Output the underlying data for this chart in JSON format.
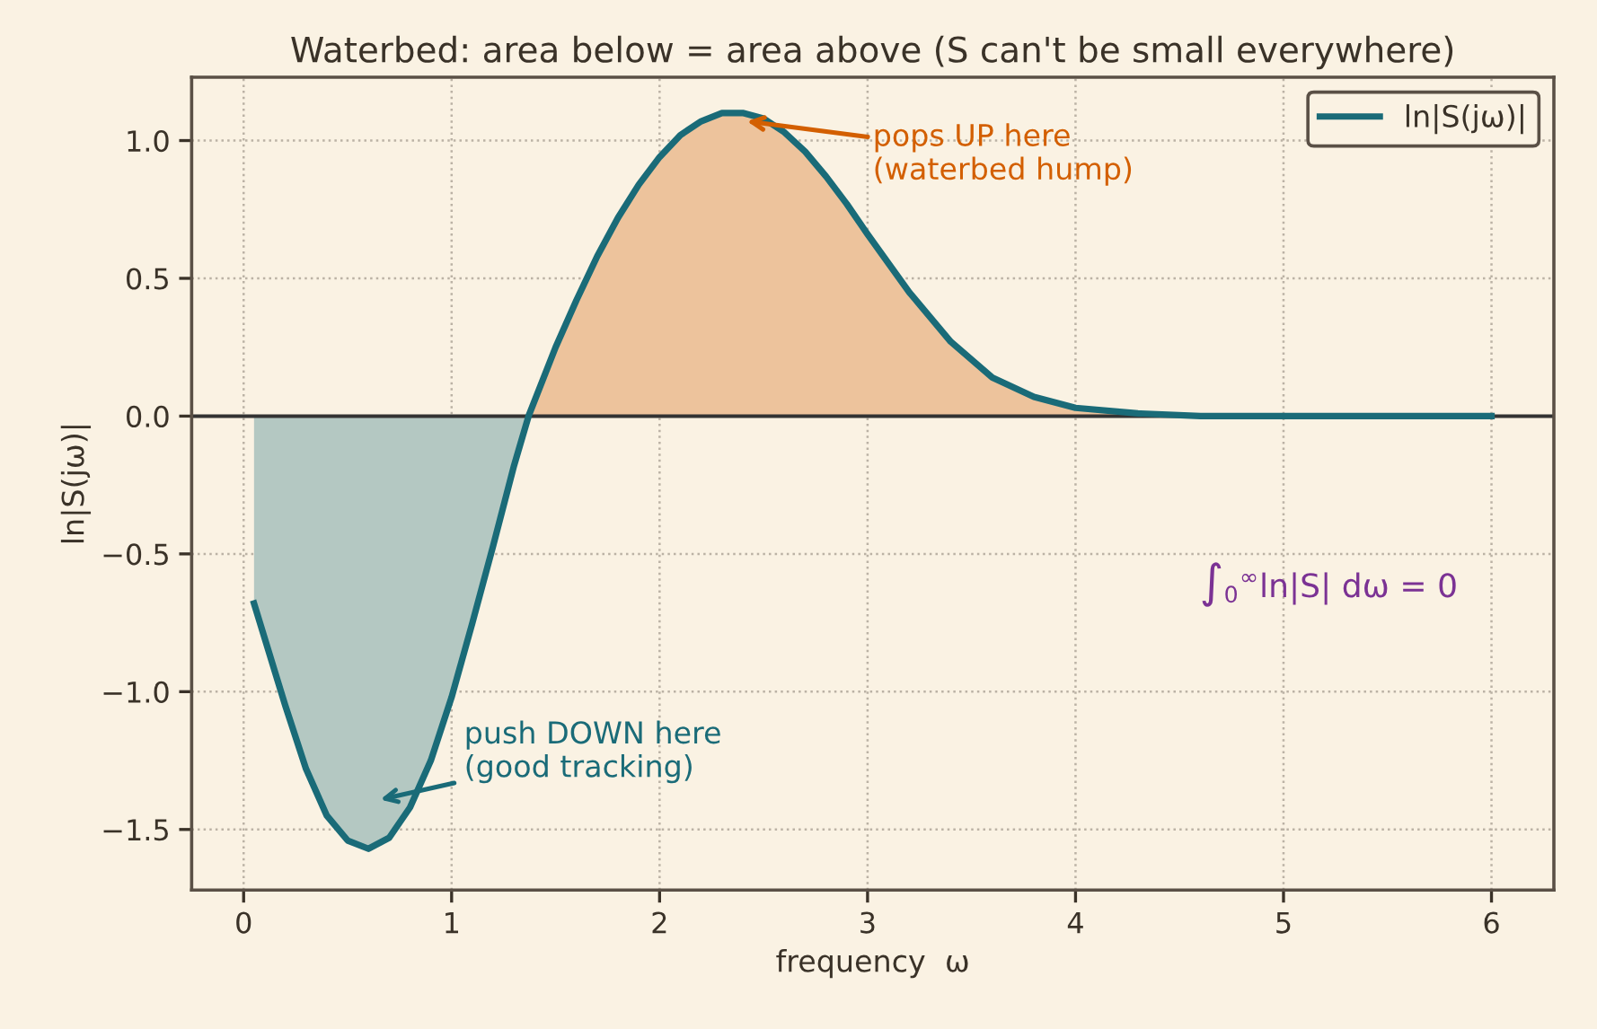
{
  "chart_data": {
    "type": "line",
    "title": "Waterbed: area below = area above (S can't be small everywhere)",
    "xlabel": "frequency  ω",
    "ylabel": "ln|S(jω)|",
    "series": [
      {
        "type": "area",
        "color": "#b4c8c2",
        "x": [
          0.05,
          0.2,
          0.3,
          0.4,
          0.5,
          0.6,
          0.7,
          0.8,
          0.9,
          1.0,
          1.1,
          1.2,
          1.3,
          1.37
        ],
        "values": [
          -0.68,
          -1.05,
          -1.28,
          -1.45,
          -1.54,
          -1.57,
          -1.53,
          -1.42,
          -1.25,
          -1.02,
          -0.75,
          -0.47,
          -0.18,
          0
        ]
      },
      {
        "type": "area",
        "color": "#edc39c",
        "x": [
          1.37,
          1.5,
          1.6,
          1.7,
          1.8,
          1.9,
          2.0,
          2.1,
          2.2,
          2.3,
          2.4,
          2.5,
          2.6,
          2.7,
          2.8,
          2.9,
          3.0,
          3.2,
          3.4,
          3.6,
          3.8,
          4.0,
          4.3,
          4.6,
          5.0,
          6.0
        ],
        "values": [
          0,
          0.25,
          0.42,
          0.58,
          0.72,
          0.84,
          0.94,
          1.02,
          1.07,
          1.1,
          1.1,
          1.08,
          1.03,
          0.96,
          0.87,
          0.77,
          0.66,
          0.45,
          0.27,
          0.14,
          0.07,
          0.03,
          0.01,
          0,
          0,
          0
        ]
      },
      {
        "name": "ln|S(jω)|",
        "color": "#1a6b78",
        "x": [
          0.05,
          0.2,
          0.3,
          0.4,
          0.5,
          0.6,
          0.7,
          0.8,
          0.9,
          1.0,
          1.1,
          1.2,
          1.3,
          1.37,
          1.5,
          1.6,
          1.7,
          1.8,
          1.9,
          2.0,
          2.1,
          2.2,
          2.3,
          2.4,
          2.5,
          2.6,
          2.7,
          2.8,
          2.9,
          3.0,
          3.2,
          3.4,
          3.6,
          3.8,
          4.0,
          4.3,
          4.6,
          5.0,
          6.0
        ],
        "values": [
          -0.68,
          -1.05,
          -1.28,
          -1.45,
          -1.54,
          -1.57,
          -1.53,
          -1.42,
          -1.25,
          -1.02,
          -0.75,
          -0.47,
          -0.18,
          0,
          0.25,
          0.42,
          0.58,
          0.72,
          0.84,
          0.94,
          1.02,
          1.07,
          1.1,
          1.1,
          1.08,
          1.03,
          0.96,
          0.87,
          0.77,
          0.66,
          0.45,
          0.27,
          0.14,
          0.07,
          0.03,
          0.01,
          0,
          0,
          0
        ]
      }
    ],
    "ref_lines": [
      {
        "axis": "y",
        "value": 0,
        "color": "#333333"
      }
    ],
    "annotations": [
      {
        "text": "pops UP here\n(waterbed hump)",
        "x": 2.42,
        "y": 1.07
      },
      "push DOWN here\n(good tracking)",
      "∫$_{0}$$^{∞}$ln|S| dω = 0"
    ],
    "xlim": [
      -0.25,
      6.3
    ],
    "ylim": [
      -1.72,
      1.23
    ],
    "xticks": [
      0,
      1,
      2,
      3,
      4,
      5,
      6
    ],
    "yticks": [
      {
        "value": -1.5,
        "label": "−1.5"
      },
      {
        "value": -1.0,
        "label": "−1.0"
      },
      {
        "value": -0.5,
        "label": "−0.5"
      },
      {
        "value": 0.0,
        "label": "0.0"
      },
      {
        "value": 0.5,
        "label": "0.5"
      },
      {
        "value": 1.0,
        "label": "1.0"
      }
    ],
    "grid": true,
    "legend": "top right"
  }
}
